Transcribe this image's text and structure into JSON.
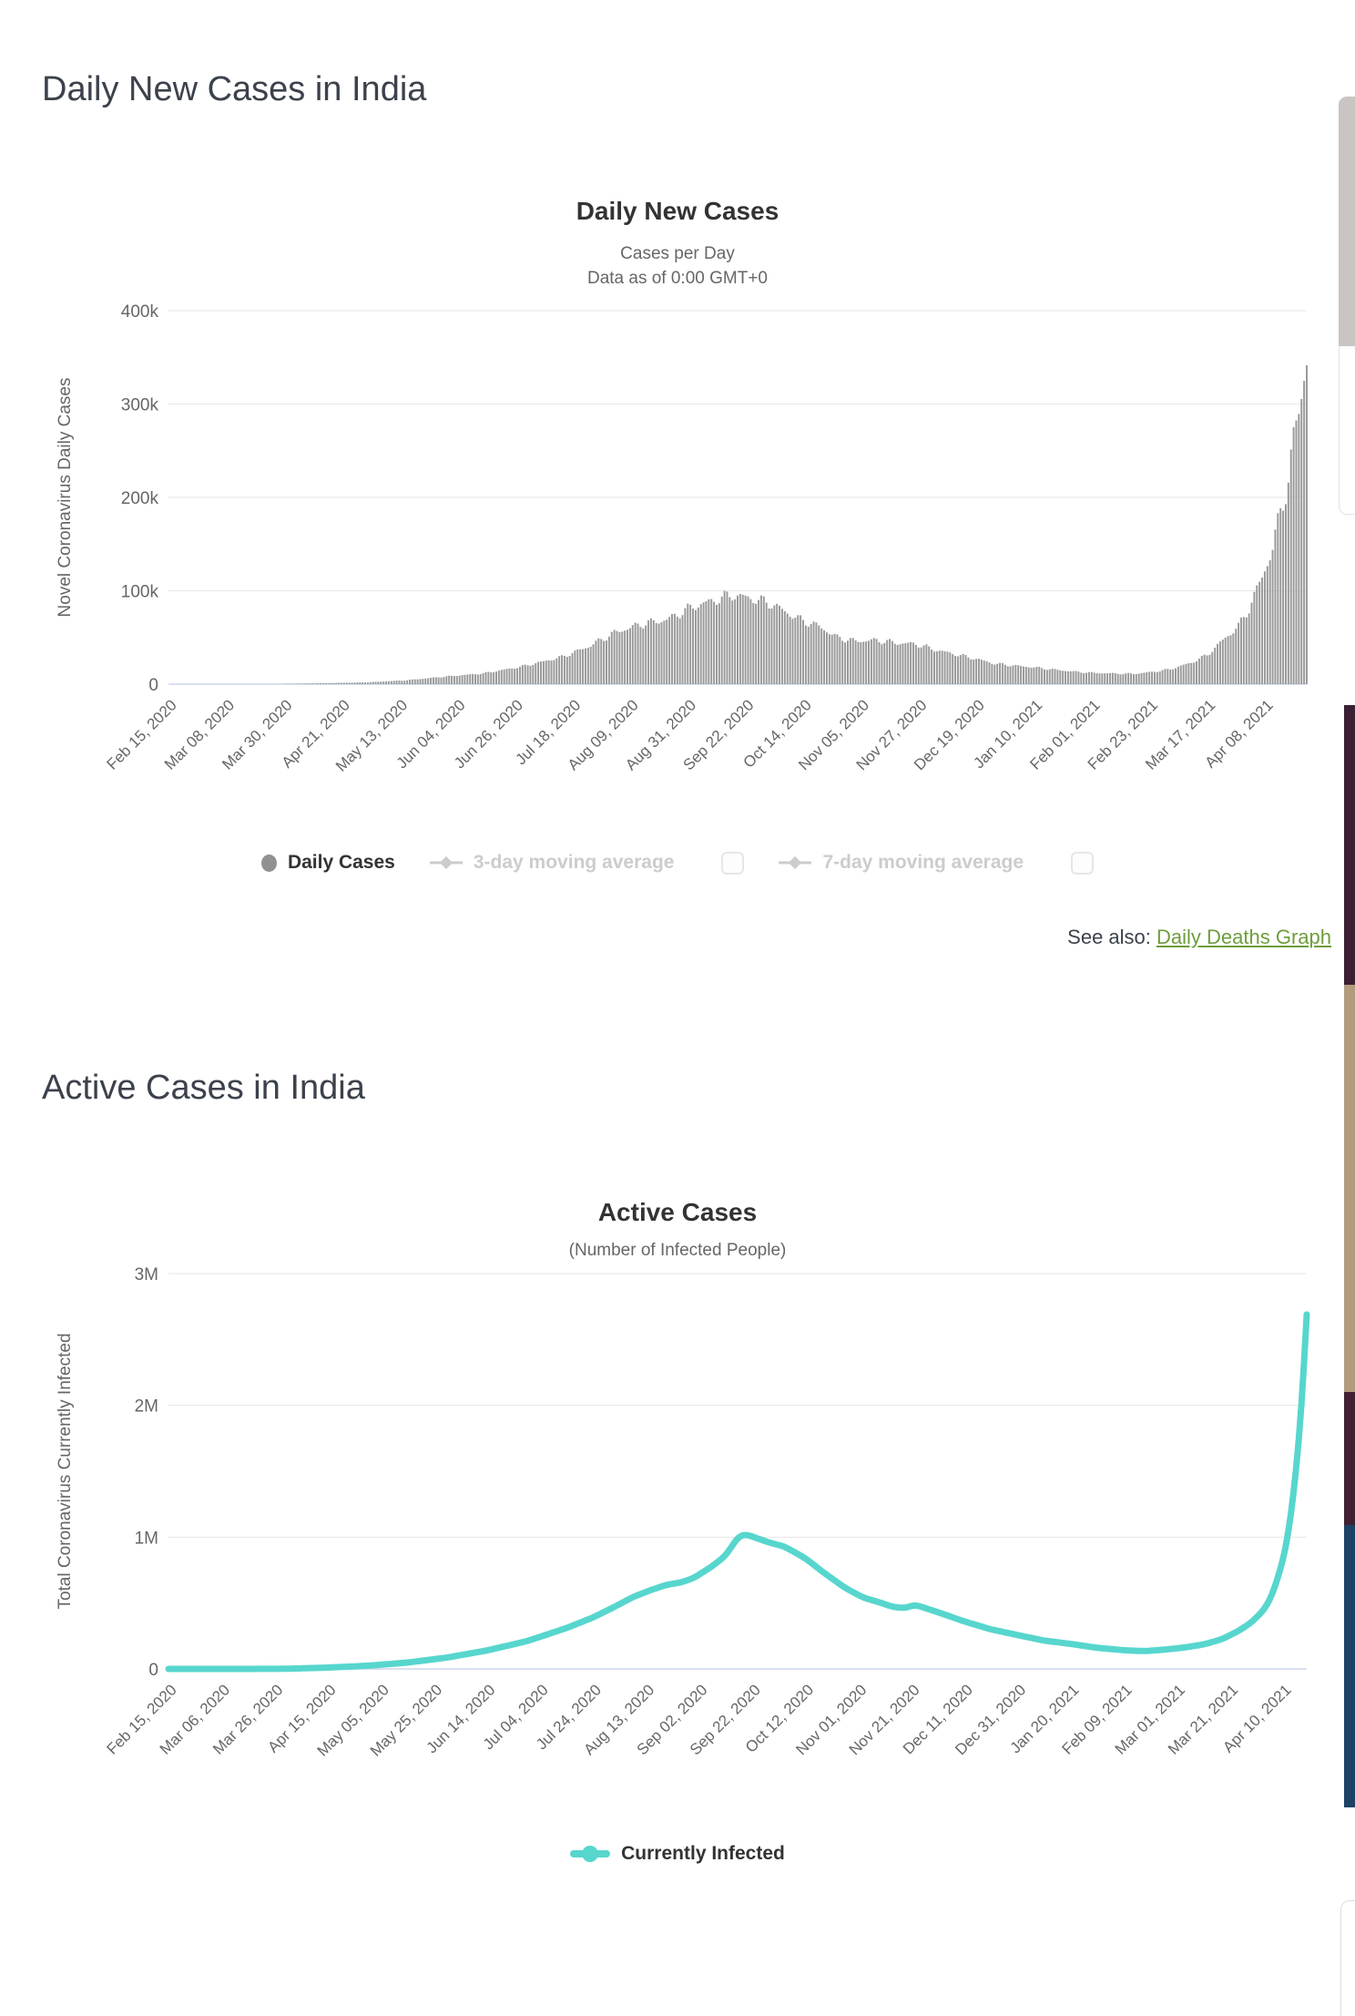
{
  "page": {
    "heading1": "Daily New Cases in India",
    "heading2": "Active Cases in India",
    "see_also_label": "See also:",
    "see_also_link": "Daily Deaths Graph"
  },
  "colors": {
    "bar_gray": "#999999",
    "line_teal": "#57d6ce",
    "link_green": "#6f9d3d",
    "grid": "#e6e6e6",
    "axis_line": "#ccd6eb",
    "axis_text": "#666666",
    "disabled_legend": "#cccccc"
  },
  "chart_data": [
    {
      "type": "bar",
      "title": "Daily New Cases",
      "subtitle_lines": [
        "Cases per Day",
        "Data as of 0:00 GMT+0"
      ],
      "ylabel": "Novel Coronavirus Daily Cases",
      "ylim": [
        0,
        400000
      ],
      "y_tick_values": [
        0,
        100000,
        200000,
        300000,
        400000
      ],
      "y_tick_labels": [
        "0",
        "100k",
        "200k",
        "300k",
        "400k"
      ],
      "grid": true,
      "legend_position": "bottom",
      "x_start_label": "Feb 15, 2020",
      "x_tick_interval_days": 22,
      "x_range_days": 434,
      "x_tick_labels": [
        "Feb 15, 2020",
        "Mar 08, 2020",
        "Mar 30, 2020",
        "Apr 21, 2020",
        "May 13, 2020",
        "Jun 04, 2020",
        "Jun 26, 2020",
        "Jul 18, 2020",
        "Aug 09, 2020",
        "Aug 31, 2020",
        "Sep 22, 2020",
        "Oct 14, 2020",
        "Nov 05, 2020",
        "Nov 27, 2020",
        "Dec 19, 2020",
        "Jan 10, 2021",
        "Feb 01, 2021",
        "Feb 23, 2021",
        "Mar 17, 2021",
        "Apr 08, 2021"
      ],
      "series_name": "Daily Cases",
      "series_color": "#999999",
      "legend": [
        {
          "label": "Daily Cases",
          "active": true,
          "marker": "circle",
          "checkbox": false
        },
        {
          "label": "3-day moving average",
          "active": false,
          "marker": "diamond-line",
          "checkbox": true
        },
        {
          "label": "7-day moving average",
          "active": false,
          "marker": "diamond-line",
          "checkbox": true
        }
      ],
      "anchors_days_value": [
        [
          0,
          0
        ],
        [
          20,
          1
        ],
        [
          35,
          60
        ],
        [
          45,
          300
        ],
        [
          60,
          1100
        ],
        [
          75,
          1900
        ],
        [
          90,
          4000
        ],
        [
          105,
          8000
        ],
        [
          120,
          11500
        ],
        [
          135,
          19000
        ],
        [
          150,
          29000
        ],
        [
          160,
          40000
        ],
        [
          170,
          55000
        ],
        [
          180,
          64000
        ],
        [
          190,
          69000
        ],
        [
          200,
          83000
        ],
        [
          215,
          95500
        ],
        [
          222,
          92000
        ],
        [
          230,
          86000
        ],
        [
          240,
          70000
        ],
        [
          248,
          62000
        ],
        [
          255,
          50000
        ],
        [
          262,
          46000
        ],
        [
          270,
          47000
        ],
        [
          278,
          44000
        ],
        [
          285,
          43000
        ],
        [
          292,
          37000
        ],
        [
          300,
          32000
        ],
        [
          308,
          27000
        ],
        [
          315,
          22000
        ],
        [
          322,
          20000
        ],
        [
          330,
          18000
        ],
        [
          338,
          15500
        ],
        [
          345,
          13500
        ],
        [
          353,
          12000
        ],
        [
          360,
          11500
        ],
        [
          368,
          11000
        ],
        [
          375,
          13000
        ],
        [
          382,
          16000
        ],
        [
          390,
          23000
        ],
        [
          396,
          31000
        ],
        [
          402,
          47000
        ],
        [
          408,
          62000
        ],
        [
          412,
          81000
        ],
        [
          417,
          115000
        ],
        [
          421,
          145000
        ],
        [
          424,
          185000
        ],
        [
          427,
          220000
        ],
        [
          429,
          260000
        ],
        [
          431,
          295000
        ],
        [
          433,
          332000
        ],
        [
          434,
          349000
        ]
      ]
    },
    {
      "type": "line",
      "title": "Active Cases",
      "subtitle_lines": [
        "(Number of Infected People)"
      ],
      "ylabel": "Total Coronavirus Currently Infected",
      "ylim": [
        0,
        3000000
      ],
      "y_tick_values": [
        0,
        1000000,
        2000000,
        3000000
      ],
      "y_tick_labels": [
        "0",
        "1M",
        "2M",
        "3M"
      ],
      "grid": true,
      "legend_position": "bottom",
      "x_start_label": "Feb 15, 2020",
      "x_tick_interval_days": 20,
      "x_range_days": 429,
      "x_tick_labels": [
        "Feb 15, 2020",
        "Mar 06, 2020",
        "Mar 26, 2020",
        "Apr 15, 2020",
        "May 05, 2020",
        "May 25, 2020",
        "Jun 14, 2020",
        "Jul 04, 2020",
        "Jul 24, 2020",
        "Aug 13, 2020",
        "Sep 02, 2020",
        "Sep 22, 2020",
        "Oct 12, 2020",
        "Nov 01, 2020",
        "Nov 21, 2020",
        "Dec 11, 2020",
        "Dec 31, 2020",
        "Jan 20, 2021",
        "Feb 09, 2021",
        "Mar 01, 2021",
        "Mar 21, 2021",
        "Apr 10, 2021"
      ],
      "series_name": "Currently Infected",
      "series_color": "#57d6ce",
      "legend": [
        {
          "label": "Currently Infected",
          "active": true,
          "marker": "line-dot",
          "checkbox": false
        }
      ],
      "anchors_days_value": [
        [
          0,
          3
        ],
        [
          15,
          30
        ],
        [
          30,
          120
        ],
        [
          45,
          1500
        ],
        [
          60,
          10000
        ],
        [
          75,
          24000
        ],
        [
          90,
          48000
        ],
        [
          105,
          86000
        ],
        [
          120,
          140000
        ],
        [
          135,
          210000
        ],
        [
          150,
          310000
        ],
        [
          160,
          390000
        ],
        [
          168,
          470000
        ],
        [
          175,
          545000
        ],
        [
          182,
          600000
        ],
        [
          188,
          640000
        ],
        [
          193,
          655000
        ],
        [
          198,
          690000
        ],
        [
          205,
          780000
        ],
        [
          210,
          860000
        ],
        [
          215,
          1010000
        ],
        [
          218,
          1020000
        ],
        [
          222,
          990000
        ],
        [
          227,
          955000
        ],
        [
          232,
          930000
        ],
        [
          240,
          840000
        ],
        [
          247,
          730000
        ],
        [
          255,
          615000
        ],
        [
          262,
          540000
        ],
        [
          268,
          505000
        ],
        [
          273,
          470000
        ],
        [
          278,
          462000
        ],
        [
          281,
          487000
        ],
        [
          284,
          470000
        ],
        [
          290,
          430000
        ],
        [
          300,
          360000
        ],
        [
          310,
          300000
        ],
        [
          320,
          257000
        ],
        [
          330,
          215000
        ],
        [
          340,
          190000
        ],
        [
          350,
          160000
        ],
        [
          360,
          142000
        ],
        [
          368,
          135000
        ],
        [
          375,
          146000
        ],
        [
          382,
          160000
        ],
        [
          390,
          185000
        ],
        [
          397,
          225000
        ],
        [
          403,
          285000
        ],
        [
          408,
          350000
        ],
        [
          413,
          450000
        ],
        [
          416,
          560000
        ],
        [
          419,
          750000
        ],
        [
          421,
          900000
        ],
        [
          423,
          1150000
        ],
        [
          425,
          1500000
        ],
        [
          427,
          1950000
        ],
        [
          428,
          2300000
        ],
        [
          429,
          2690000
        ]
      ]
    }
  ]
}
